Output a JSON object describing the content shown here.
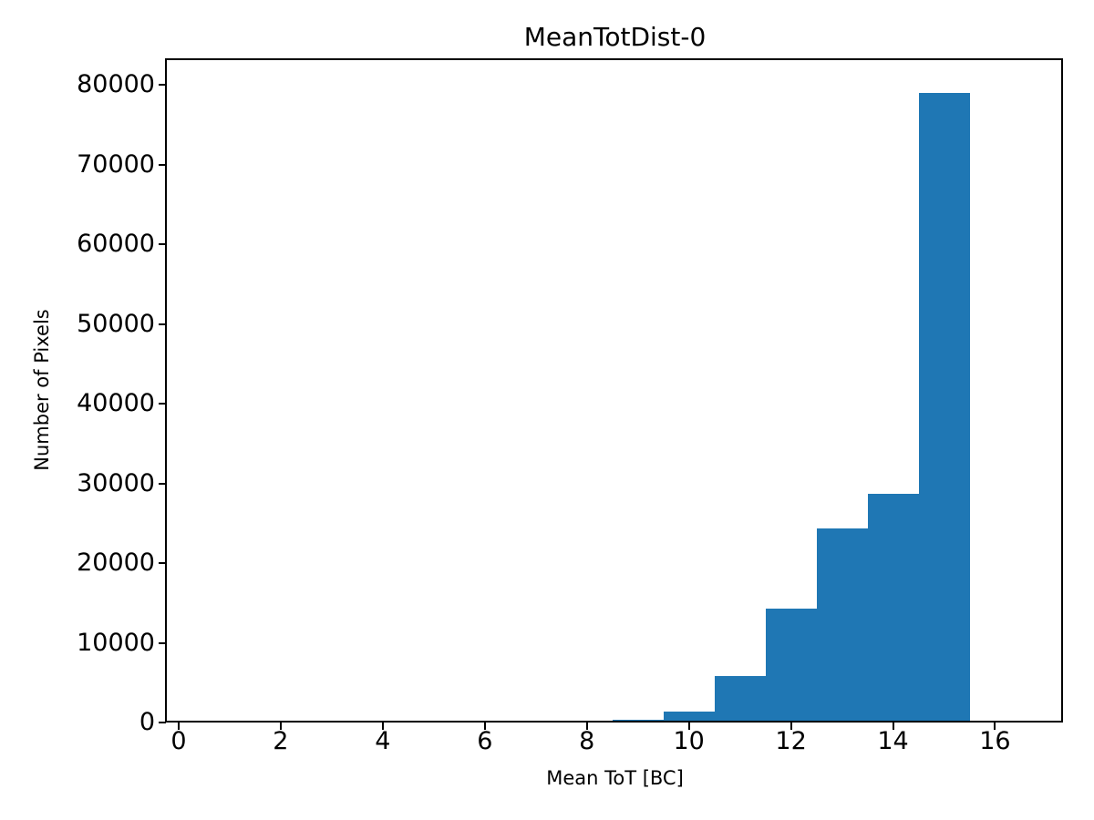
{
  "figure": {
    "kind": "matplotlib-histogram-figure",
    "background_color": "#ffffff",
    "text_color": "#000000"
  },
  "chart_data": {
    "type": "bar",
    "subtype": "histogram",
    "title": "MeanTotDist-0",
    "xlabel": "Mean ToT [BC]",
    "ylabel": "Number of Pixels",
    "bar_color": "#1f77b4",
    "bin_edges": [
      0.5,
      1.5,
      2.5,
      3.5,
      4.5,
      5.5,
      6.5,
      7.5,
      8.5,
      9.5,
      10.5,
      11.5,
      12.5,
      13.5,
      14.5,
      15.5,
      16.5
    ],
    "counts": [
      0,
      0,
      0,
      0,
      0,
      0,
      0,
      0,
      400,
      1430,
      5800,
      14240,
      24300,
      28650,
      79000,
      0
    ],
    "xlim": [
      -0.25,
      17.35
    ],
    "ylim": [
      0,
      83200
    ],
    "xticks": [
      0,
      2,
      4,
      6,
      8,
      10,
      12,
      14,
      16
    ],
    "yticks": [
      0,
      10000,
      20000,
      30000,
      40000,
      50000,
      60000,
      70000,
      80000
    ],
    "grid": false,
    "legend": null,
    "legend_position": "none"
  }
}
